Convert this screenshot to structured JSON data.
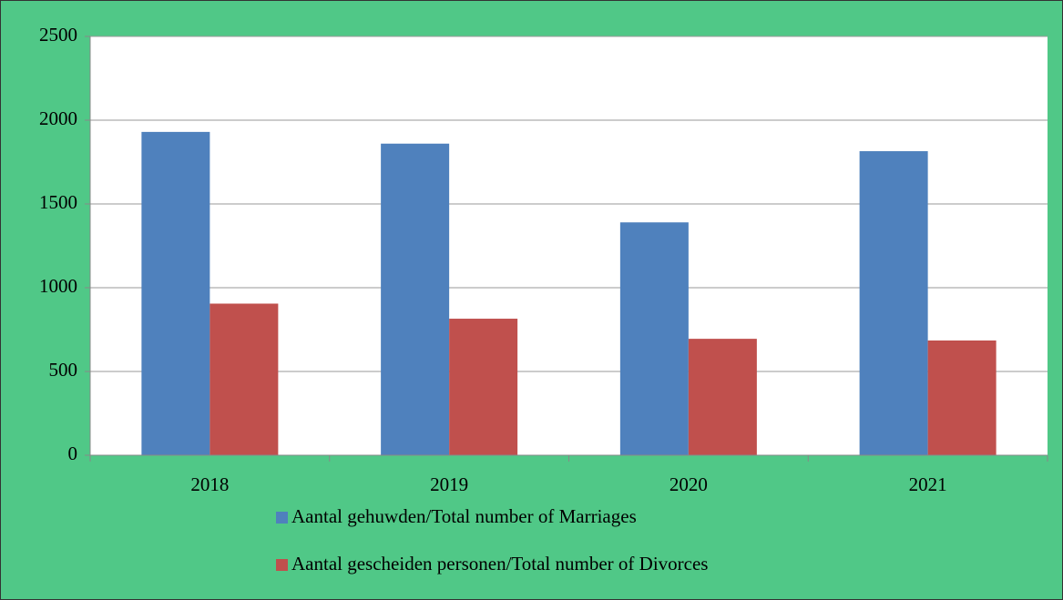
{
  "chart_data": {
    "type": "bar",
    "categories": [
      "2018",
      "2019",
      "2020",
      "2021"
    ],
    "series": [
      {
        "name": "Aantal gehuwden/Total number of Marriages",
        "color": "#4f81bd",
        "values": [
          1930,
          1860,
          1390,
          1815
        ]
      },
      {
        "name": "Aantal gescheiden personen/Total number of Divorces",
        "color": "#c0504d",
        "values": [
          905,
          815,
          695,
          685
        ]
      }
    ],
    "ylim": [
      0,
      2500
    ],
    "yticks": [
      0,
      500,
      1000,
      1500,
      2000,
      2500
    ],
    "grid": true,
    "legend": "bottom"
  }
}
